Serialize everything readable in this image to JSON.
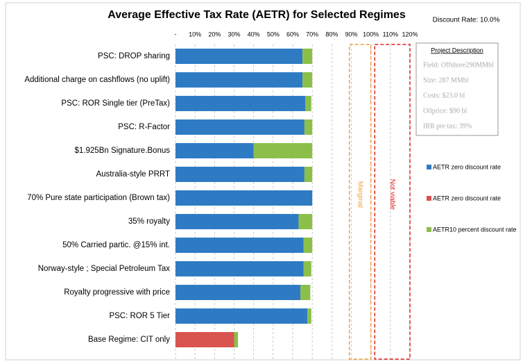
{
  "chart_data": {
    "type": "stacked-bar-horizontal",
    "title": "Average Effective Tax Rate (AETR) for Selected Regimes",
    "subtitle": "Discount Rate: 10.0%",
    "categories": [
      "PSC: DROP sharing",
      "Additional charge on cashflows (no uplift)",
      "PSC: ROR Single tier  (PreTax)",
      "PSC: R-Factor",
      "$1.925Bn Signature.Bonus",
      "Australia-style PRRT",
      "70% Pure state participation (Brown tax)",
      "35% royalty",
      "50% Carried partic. @15% int.",
      "Norway-style ; Special Petroleum Tax",
      "Royalty progressive with price",
      "PSC: ROR 5 Tier",
      "Base Regime: CIT only"
    ],
    "series": [
      {
        "name": "AETR zero discount rate",
        "color": "#2e7bc4",
        "values": [
          65,
          65,
          66.5,
          66,
          40,
          66,
          70,
          63,
          65.5,
          65.5,
          64,
          67.5,
          null
        ]
      },
      {
        "name": "AETR zero discount rate",
        "color": "#d9534f",
        "values": [
          null,
          null,
          null,
          null,
          null,
          null,
          null,
          null,
          null,
          null,
          null,
          null,
          30
        ]
      },
      {
        "name": "AETR10 percent discount rate",
        "color": "#8bbf4a",
        "values": [
          5,
          5,
          3,
          4,
          30,
          4,
          0,
          7,
          4.5,
          4,
          5,
          2,
          2
        ]
      }
    ],
    "xlim": [
      0,
      120
    ],
    "xticks": [
      {
        "value": 0,
        "label": "-"
      },
      {
        "value": 10,
        "label": "10%"
      },
      {
        "value": 20,
        "label": "20%"
      },
      {
        "value": 30,
        "label": "30%"
      },
      {
        "value": 40,
        "label": "40%"
      },
      {
        "value": 50,
        "label": "50%"
      },
      {
        "value": 60,
        "label": "60%"
      },
      {
        "value": 70,
        "label": "70%"
      },
      {
        "value": 80,
        "label": "80%"
      },
      {
        "value": 90,
        "label": "90%"
      },
      {
        "value": 100,
        "label": "100%"
      },
      {
        "value": 110,
        "label": "110%"
      },
      {
        "value": 120,
        "label": "120%"
      }
    ],
    "grid": true,
    "zones": [
      {
        "label": "Marginal",
        "from": 89,
        "to": 100,
        "color": "#f0a040"
      },
      {
        "label": "Not viable",
        "from": 102,
        "to": 120,
        "color": "#e02020"
      }
    ],
    "project_description": {
      "title": "Project Description",
      "lines": [
        "Field: Offshore290MMbl",
        "Size: 287 MMbl",
        "Costs: $23.0 bl",
        "Oilprice:  $90 bl",
        "IRR pre tax: 39%"
      ]
    }
  }
}
